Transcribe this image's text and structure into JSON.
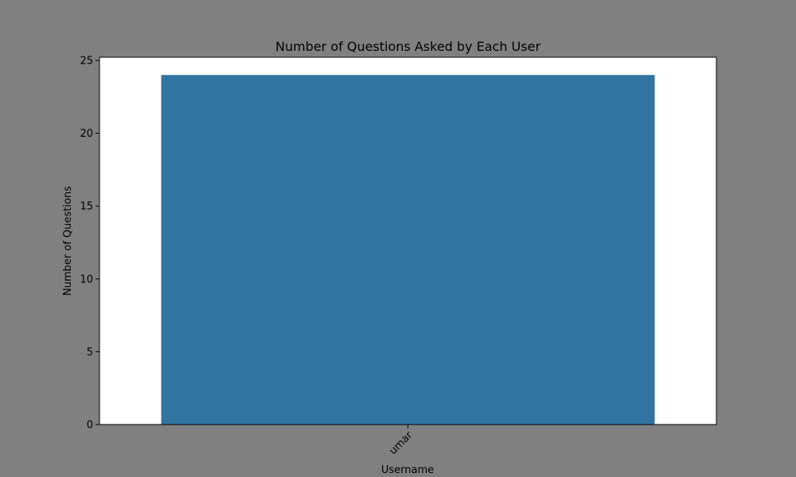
{
  "colors": {
    "figure_background": "#808080",
    "plot_background": "#ffffff",
    "bar": "#3274a1",
    "axis": "#000000"
  },
  "chart_data": {
    "type": "bar",
    "title": "Number of Questions Asked by Each User",
    "xlabel": "Username",
    "ylabel": "Number of Questions",
    "categories": [
      "umar"
    ],
    "values": [
      24
    ],
    "ylim": [
      0,
      25
    ],
    "yticks": [
      0,
      5,
      10,
      15,
      20,
      25
    ],
    "xtick_rotation_deg": 45,
    "grid": false,
    "legend": "none"
  }
}
